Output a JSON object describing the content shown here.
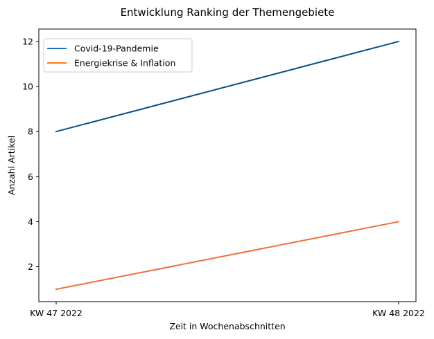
{
  "chart_data": {
    "type": "line",
    "title": "Entwicklung Ranking der Themengebiete",
    "xlabel": "Zeit in Wochenabschnitten",
    "ylabel": "Anzahl Artikel",
    "categories": [
      "KW 47 2022",
      "KW 48 2022"
    ],
    "ylim": [
      0.45,
      12.55
    ],
    "yticks": [
      2,
      4,
      6,
      8,
      10,
      12
    ],
    "grid": false,
    "legend_position": "top-left",
    "series": [
      {
        "name": "Covid-19-Pandemie",
        "values": [
          8,
          12
        ],
        "color": "#1f77b4",
        "drawn_color": "#0b4f80"
      },
      {
        "name": "Energiekrise & Inflation",
        "values": [
          1,
          4
        ],
        "color": "#ff7f0e",
        "drawn_color": "#f0703a"
      }
    ]
  }
}
